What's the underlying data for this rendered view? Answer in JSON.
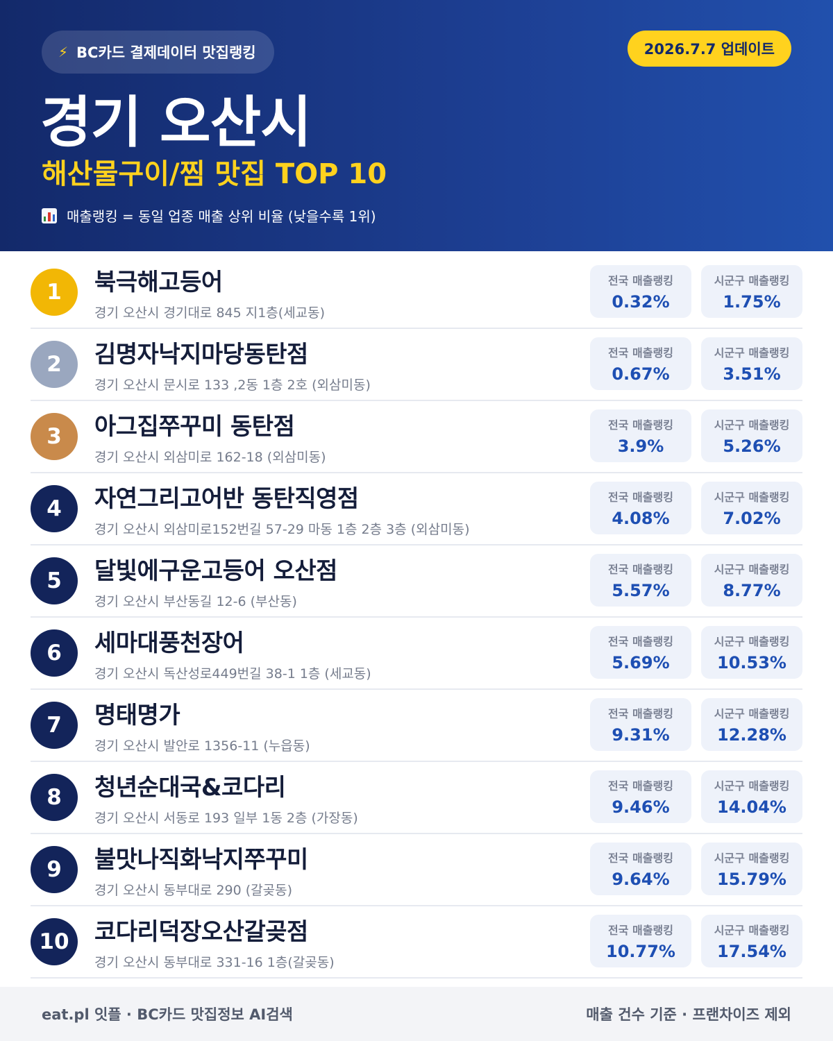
{
  "header": {
    "source": "BC카드 결제데이터 맛집랭킹",
    "updated": "2026.7.7 업데이트",
    "title": "경기 오산시",
    "subtitle": "해산물구이/찜 맛집 TOP 10",
    "note": "매출랭킹 = 동일 업종 매출 상위 비율 (낮을수록 1위)"
  },
  "labels": {
    "national": "전국 매출랭킹",
    "district": "시군구 매출랭킹"
  },
  "colors": {
    "header_dark": "#13296a",
    "header_light": "#2150ad",
    "accent_yellow": "#ffd21e",
    "rank_gold": "#f2b705",
    "rank_silver": "#9aa7bf",
    "rank_bronze": "#c98a4b",
    "rank_default": "#13245a",
    "value_blue": "#1e4fb3"
  },
  "icons": {
    "source": "lightning-bolt-icon",
    "note": "bar-chart-icon"
  },
  "restaurants": [
    {
      "rank": "1",
      "name": "북극해고등어",
      "address": "경기 오산시 경기대로 845 지1층(세교동)",
      "national": "0.32%",
      "district": "1.75%"
    },
    {
      "rank": "2",
      "name": "김명자낙지마당동탄점",
      "address": "경기 오산시 문시로 133 ,2동 1층 2호 (외삼미동)",
      "national": "0.67%",
      "district": "3.51%"
    },
    {
      "rank": "3",
      "name": "아그집쭈꾸미 동탄점",
      "address": "경기 오산시 외삼미로 162-18 (외삼미동)",
      "national": "3.9%",
      "district": "5.26%"
    },
    {
      "rank": "4",
      "name": "자연그리고어반 동탄직영점",
      "address": "경기 오산시 외삼미로152번길 57-29 마동 1층 2층 3층 (외삼미동)",
      "national": "4.08%",
      "district": "7.02%"
    },
    {
      "rank": "5",
      "name": "달빛에구운고등어 오산점",
      "address": "경기 오산시 부산동길 12-6 (부산동)",
      "national": "5.57%",
      "district": "8.77%"
    },
    {
      "rank": "6",
      "name": "세마대풍천장어",
      "address": "경기 오산시 독산성로449번길 38-1 1층 (세교동)",
      "national": "5.69%",
      "district": "10.53%"
    },
    {
      "rank": "7",
      "name": "명태명가",
      "address": "경기 오산시 발안로 1356-11 (누읍동)",
      "national": "9.31%",
      "district": "12.28%"
    },
    {
      "rank": "8",
      "name": "청년순대국&코다리",
      "address": "경기 오산시 서동로 193 일부 1동 2층 (가장동)",
      "national": "9.46%",
      "district": "14.04%"
    },
    {
      "rank": "9",
      "name": "불맛나직화낙지쭈꾸미",
      "address": "경기 오산시 동부대로 290 (갈곶동)",
      "national": "9.64%",
      "district": "15.79%"
    },
    {
      "rank": "10",
      "name": "코다리덕장오산갈곶점",
      "address": "경기 오산시 동부대로 331-16 1층(갈곶동)",
      "national": "10.77%",
      "district": "17.54%"
    }
  ],
  "footer": {
    "left": "eat.pl 잇플 · BC카드 맛집정보 AI검색",
    "right": "매출 건수 기준 · 프랜차이즈 제외"
  }
}
